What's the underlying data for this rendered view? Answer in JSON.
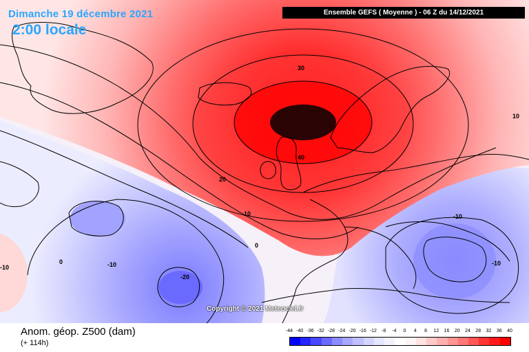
{
  "header": {
    "date": "Dimanche 19 décembre 2021",
    "local_time": "2:00 locale",
    "model_run": "Ensemble GEFS  ( Moyenne )  -  06 Z du 14/12/2021"
  },
  "map": {
    "contour_labels": [
      "30",
      "40",
      "20",
      "10",
      "0",
      "0",
      "-10",
      "-20",
      "-10",
      "-10",
      "10",
      "-10"
    ],
    "copyright": "Copyright © 2021 Meteociel.fr"
  },
  "footer": {
    "parameter": "Anom. géop. Z500 (dam)",
    "lead_time": "(+ 114h)"
  },
  "legend": {
    "ticks": [
      "-44",
      "-40",
      "-36",
      "-32",
      "-28",
      "-24",
      "-20",
      "-16",
      "-12",
      "-8",
      "-4",
      "0",
      "4",
      "8",
      "12",
      "16",
      "20",
      "24",
      "28",
      "32",
      "36",
      "40"
    ],
    "colors": [
      "#0000ff",
      "#2424ff",
      "#4848ff",
      "#6a6aff",
      "#8c8cff",
      "#a8a8ff",
      "#c0c0ff",
      "#d4d4ff",
      "#e6e6ff",
      "#f2f2ff",
      "#ffffff",
      "#fff4f4",
      "#ffe2e2",
      "#ffcaca",
      "#ffb0b0",
      "#ff9494",
      "#ff7676",
      "#ff5656",
      "#ff3434",
      "#ff1a1a",
      "#ff0000"
    ]
  }
}
